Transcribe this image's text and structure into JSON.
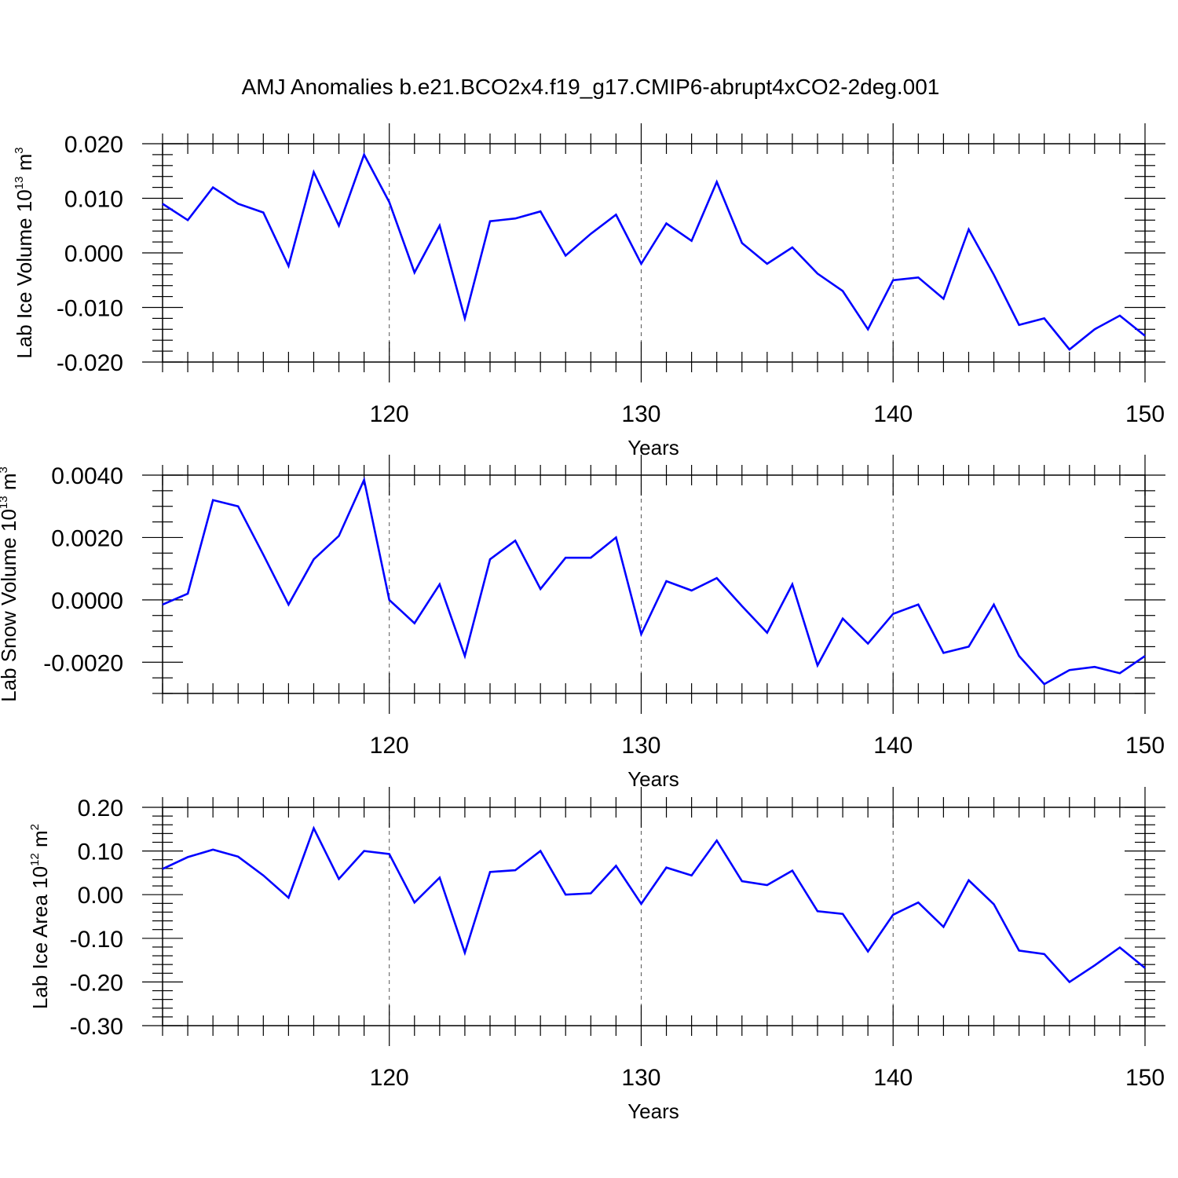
{
  "title": "AMJ Anomalies b.e21.BCO2x4.f19_g17.CMIP6-abrupt4xCO2-2deg.001",
  "line_color": "#0000ff",
  "chart_data": [
    {
      "type": "line",
      "ylabel": {
        "text": "Lab Ice Volume 10",
        "exponent": "13",
        "unit": " m",
        "unit_exponent": "3"
      },
      "xlabel": "Years",
      "xlim": [
        111,
        150
      ],
      "ylim": [
        -0.02,
        0.02
      ],
      "xticks": [
        "120",
        "130",
        "140",
        "150"
      ],
      "xtick_values": [
        120,
        130,
        140,
        150
      ],
      "yticks": [
        "0.020",
        "0.010",
        "0.000",
        "-0.010",
        "-0.020"
      ],
      "ytick_values": [
        0.02,
        0.01,
        0.0,
        -0.01,
        -0.02
      ],
      "grid": "vertical dashed at major x ticks",
      "x": [
        111,
        112,
        113,
        114,
        115,
        116,
        117,
        118,
        119,
        120,
        121,
        122,
        123,
        124,
        125,
        126,
        127,
        128,
        129,
        130,
        131,
        132,
        133,
        134,
        135,
        136,
        137,
        138,
        139,
        140,
        141,
        142,
        143,
        144,
        145,
        146,
        147,
        148,
        149,
        150
      ],
      "y": [
        0.009,
        0.006,
        0.012,
        0.009,
        0.0074,
        -0.0024,
        0.0148,
        0.005,
        0.018,
        0.0093,
        -0.0036,
        0.005,
        -0.012,
        0.0058,
        0.0063,
        0.0076,
        -0.0005,
        0.0035,
        0.007,
        -0.002,
        0.0054,
        0.0022,
        0.013,
        0.0018,
        -0.002,
        0.001,
        -0.0038,
        -0.007,
        -0.014,
        -0.005,
        -0.0045,
        -0.0084,
        0.0043,
        -0.004,
        -0.0132,
        -0.012,
        -0.0177,
        -0.014,
        -0.0115,
        -0.0152
      ]
    },
    {
      "type": "line",
      "ylabel": {
        "text": "Lab Snow Volume 10",
        "exponent": "13",
        "unit": " m",
        "unit_exponent": "3"
      },
      "xlabel": "Years",
      "xlim": [
        111,
        150
      ],
      "ylim": [
        -0.003,
        0.004
      ],
      "xticks": [
        "120",
        "130",
        "140",
        "150"
      ],
      "xtick_values": [
        120,
        130,
        140,
        150
      ],
      "yticks": [
        "0.0040",
        "0.0020",
        "0.0000",
        "-0.0020"
      ],
      "ytick_values": [
        0.004,
        0.002,
        0.0,
        -0.002
      ],
      "grid": "vertical dashed at major x ticks",
      "x": [
        111,
        112,
        113,
        114,
        115,
        116,
        117,
        118,
        119,
        120,
        121,
        122,
        123,
        124,
        125,
        126,
        127,
        128,
        129,
        130,
        131,
        132,
        133,
        134,
        135,
        136,
        137,
        138,
        139,
        140,
        141,
        142,
        143,
        144,
        145,
        146,
        147,
        148,
        149,
        150
      ],
      "y": [
        -0.00015,
        0.0002,
        0.0032,
        0.003,
        0.00145,
        -0.00015,
        0.0013,
        0.00205,
        0.00385,
        0.0,
        -0.00075,
        0.0005,
        -0.0018,
        0.0013,
        0.0019,
        0.00035,
        0.00135,
        0.00135,
        0.002,
        -0.0011,
        0.0006,
        0.0003,
        0.0007,
        -0.0002,
        -0.00105,
        0.0005,
        -0.0021,
        -0.0006,
        -0.0014,
        -0.00045,
        -0.00015,
        -0.0017,
        -0.0015,
        -0.00015,
        -0.0018,
        -0.0027,
        -0.00225,
        -0.00215,
        -0.00235,
        -0.0018
      ]
    },
    {
      "type": "line",
      "ylabel": {
        "text": "Lab Ice Area 10",
        "exponent": "12",
        "unit": " m",
        "unit_exponent": "2"
      },
      "xlabel": "Years",
      "xlim": [
        111,
        150
      ],
      "ylim": [
        -0.3,
        0.2
      ],
      "xticks": [
        "120",
        "130",
        "140",
        "150"
      ],
      "xtick_values": [
        120,
        130,
        140,
        150
      ],
      "yticks": [
        "0.20",
        "0.10",
        "0.00",
        "-0.10",
        "-0.20",
        "-0.30"
      ],
      "ytick_values": [
        0.2,
        0.1,
        0.0,
        -0.1,
        -0.2,
        -0.3
      ],
      "grid": "vertical dashed at major x ticks",
      "x": [
        111,
        112,
        113,
        114,
        115,
        116,
        117,
        118,
        119,
        120,
        121,
        122,
        123,
        124,
        125,
        126,
        127,
        128,
        129,
        130,
        131,
        132,
        133,
        134,
        135,
        136,
        137,
        138,
        139,
        140,
        141,
        142,
        143,
        144,
        145,
        146,
        147,
        148,
        149,
        150
      ],
      "y": [
        0.059,
        0.086,
        0.103,
        0.087,
        0.044,
        -0.007,
        0.152,
        0.036,
        0.1,
        0.093,
        -0.018,
        0.039,
        -0.133,
        0.052,
        0.056,
        0.1,
        0.0,
        0.003,
        0.066,
        -0.021,
        0.062,
        0.044,
        0.124,
        0.031,
        0.022,
        0.055,
        -0.038,
        -0.044,
        -0.13,
        -0.046,
        -0.018,
        -0.074,
        0.033,
        -0.022,
        -0.128,
        -0.136,
        -0.2,
        -0.162,
        -0.121,
        -0.168
      ]
    }
  ]
}
